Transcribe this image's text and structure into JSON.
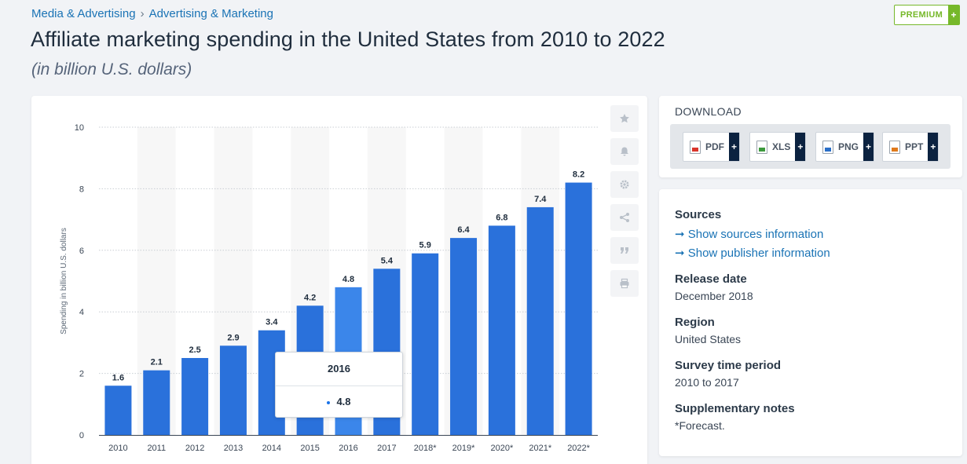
{
  "breadcrumb": {
    "items": [
      "Media & Advertising",
      "Advertising & Marketing"
    ],
    "separator": "›"
  },
  "title": "Affiliate marketing spending in the United States from 2010 to 2022",
  "subtitle": "(in billion U.S. dollars)",
  "premium": {
    "label": "PREMIUM",
    "plus": "+"
  },
  "toolbar": {
    "icons": [
      "star-icon",
      "bell-icon",
      "gear-icon",
      "share-icon",
      "quote-icon",
      "print-icon"
    ]
  },
  "tooltip": {
    "year": "2016",
    "value": "4.8"
  },
  "download": {
    "title": "DOWNLOAD",
    "buttons": [
      {
        "label": "PDF",
        "plus": "+"
      },
      {
        "label": "XLS",
        "plus": "+"
      },
      {
        "label": "PNG",
        "plus": "+"
      },
      {
        "label": "PPT",
        "plus": "+"
      }
    ]
  },
  "info": {
    "sources_heading": "Sources",
    "sources_link": "➞ Show sources information",
    "publisher_link": "➞ Show publisher information",
    "release_heading": "Release date",
    "release_value": "December 2018",
    "region_heading": "Region",
    "region_value": "United States",
    "survey_heading": "Survey time period",
    "survey_value": "2010 to 2017",
    "notes_heading": "Supplementary notes",
    "notes_value": "*Forecast."
  },
  "colors": {
    "bar": "#2a71db",
    "bar_highlight": "#3b86ea",
    "band": "#f7f7f7",
    "grid": "#c9ced4"
  },
  "chart_data": {
    "type": "bar",
    "title": "Affiliate marketing spending in the United States from 2010 to 2022",
    "ylabel": "Spending in billion U.S. dollars",
    "xlabel": "",
    "categories": [
      "2010",
      "2011",
      "2012",
      "2013",
      "2014",
      "2015",
      "2016",
      "2017",
      "2018*",
      "2019*",
      "2020*",
      "2021*",
      "2022*"
    ],
    "values": [
      1.6,
      2.1,
      2.5,
      2.9,
      3.4,
      4.2,
      4.8,
      5.4,
      5.9,
      6.4,
      6.8,
      7.4,
      8.2
    ],
    "value_labels": [
      "1.6",
      "2.1",
      "2.5",
      "2.9",
      "3.4",
      "4.2",
      "4.8",
      "5.4",
      "5.9",
      "6.4",
      "6.8",
      "7.4",
      "8.2"
    ],
    "yticks": [
      "0",
      "2",
      "4",
      "6",
      "8",
      "10"
    ],
    "ylim": [
      0,
      10
    ],
    "highlight_index": 6,
    "grid": true
  }
}
